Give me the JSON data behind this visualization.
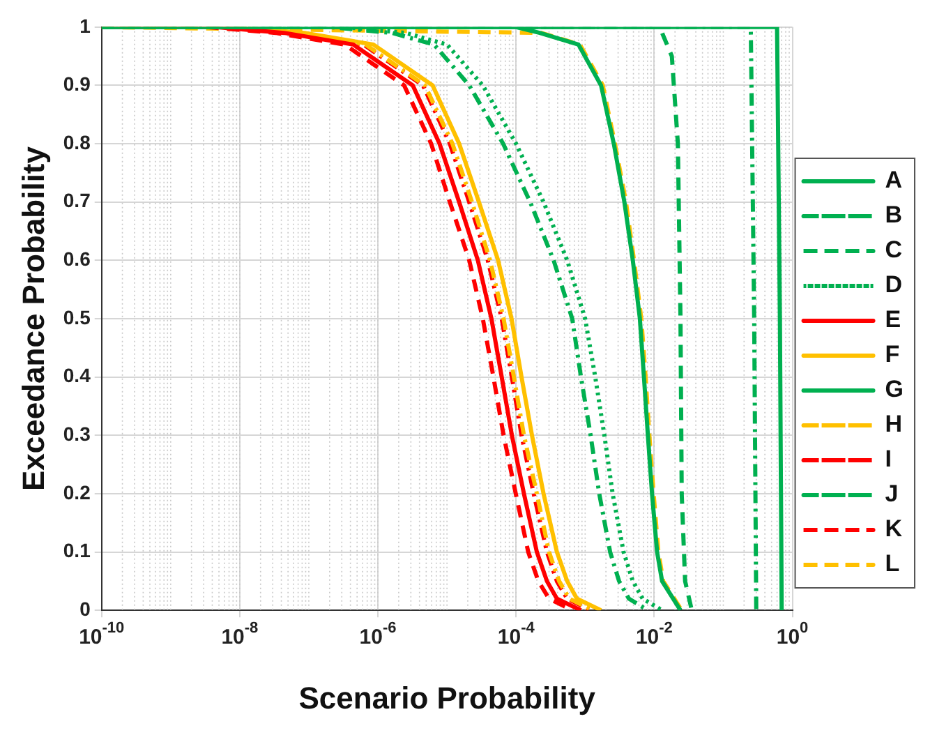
{
  "chart_data": {
    "type": "line",
    "xlabel": "Scenario Probability",
    "ylabel": "Exceedance Probability",
    "log": "x",
    "grid": true,
    "legend": "right",
    "marker": "none",
    "xlim": [
      1e-10,
      1
    ],
    "xticks": [
      {
        "value": 1e-10,
        "label": "10$^{-10}$"
      },
      {
        "value": 1e-08,
        "label": "10$^{-8}$"
      },
      {
        "value": 1e-06,
        "label": "10$^{-6}$"
      },
      {
        "value": 0.0001,
        "label": "10$^{-4}$"
      },
      {
        "value": 0.01,
        "label": "10$^{-2}$"
      },
      {
        "value": 1,
        "label": "10$^{0}$"
      }
    ],
    "ylim": [
      0,
      1
    ],
    "yticks": [
      0,
      0.1,
      0.2,
      0.3,
      0.4,
      0.5,
      0.6,
      0.7,
      0.8,
      0.9,
      1
    ],
    "series": [
      {
        "name": "A",
        "color": "#00b050",
        "line_style": "solid",
        "x": [
          1e-10,
          0.6,
          0.66,
          0.7
        ],
        "values": [
          1,
          1,
          0.5,
          0
        ]
      },
      {
        "name": "B",
        "color": "#00b050",
        "line_style": "dashdot",
        "x": [
          1e-10,
          0.25,
          0.28,
          0.3
        ],
        "values": [
          1,
          1,
          0.5,
          0
        ]
      },
      {
        "name": "C",
        "color": "#00b050",
        "line_style": "dashed",
        "x": [
          1e-10,
          0.012,
          0.018,
          0.022,
          0.024,
          0.025,
          0.028,
          0.035
        ],
        "values": [
          1,
          1,
          0.95,
          0.8,
          0.5,
          0.2,
          0.05,
          0
        ]
      },
      {
        "name": "D",
        "color": "#00b050",
        "line_style": "dotted",
        "x": [
          1e-10,
          3.2e-07,
          2.5e-06,
          1e-05,
          3.3e-05,
          0.0001,
          0.00025,
          0.00055,
          0.001,
          0.0014,
          0.0019,
          0.0025,
          0.0036,
          0.0049,
          0.0068,
          0.013
        ],
        "values": [
          1,
          1,
          0.99,
          0.97,
          0.9,
          0.8,
          0.7,
          0.6,
          0.5,
          0.4,
          0.3,
          0.2,
          0.1,
          0.05,
          0.02,
          0
        ]
      },
      {
        "name": "E",
        "color": "#ff0000",
        "line_style": "solid",
        "x": [
          1e-10,
          4.4e-09,
          4.4e-08,
          4.4e-07,
          3.2e-06,
          7.8e-06,
          1.5e-05,
          2.8e-05,
          4.4e-05,
          6.2e-05,
          8.7e-05,
          0.00013,
          0.0002,
          0.00028,
          0.00039,
          0.00087
        ],
        "values": [
          1,
          1,
          0.99,
          0.97,
          0.9,
          0.8,
          0.7,
          0.6,
          0.5,
          0.4,
          0.3,
          0.2,
          0.1,
          0.05,
          0.02,
          0
        ]
      },
      {
        "name": "F",
        "color": "#ffc000",
        "line_style": "solid",
        "x": [
          1e-10,
          8.6e-09,
          8.6e-08,
          8.6e-07,
          6.2e-06,
          1.5e-05,
          2.9e-05,
          5.5e-05,
          8.6e-05,
          0.00012,
          0.00017,
          0.00025,
          0.00039,
          0.00055,
          0.00076,
          0.0017
        ],
        "values": [
          1,
          1,
          0.99,
          0.97,
          0.9,
          0.8,
          0.7,
          0.6,
          0.5,
          0.4,
          0.3,
          0.2,
          0.1,
          0.05,
          0.02,
          0
        ]
      },
      {
        "name": "G",
        "color": "#00b050",
        "line_style": "solid",
        "x": [
          1e-10,
          0.0001,
          0.00022,
          0.0008,
          0.0017,
          0.0026,
          0.0037,
          0.0049,
          0.0062,
          0.0071,
          0.0081,
          0.0093,
          0.011,
          0.013,
          0.024
        ],
        "values": [
          1,
          1,
          0.99,
          0.97,
          0.9,
          0.8,
          0.7,
          0.6,
          0.5,
          0.4,
          0.3,
          0.2,
          0.1,
          0.05,
          0
        ]
      },
      {
        "name": "H",
        "color": "#ffc000",
        "line_style": "dashdot",
        "x": [
          1e-10,
          6.6e-09,
          6.6e-08,
          6.6e-07,
          4.8e-06,
          1.2e-05,
          2.3e-05,
          4.2e-05,
          6.6e-05,
          9.3e-05,
          0.00013,
          0.0002,
          0.0003,
          0.00042,
          0.00059,
          0.0013
        ],
        "values": [
          1,
          1,
          0.99,
          0.97,
          0.9,
          0.8,
          0.7,
          0.6,
          0.5,
          0.4,
          0.3,
          0.2,
          0.1,
          0.05,
          0.02,
          0
        ]
      },
      {
        "name": "I",
        "color": "#ff0000",
        "line_style": "dashdot",
        "x": [
          1e-10,
          6.2e-09,
          6.2e-08,
          6.2e-07,
          4.5e-06,
          1.1e-05,
          2.1e-05,
          3.9e-05,
          6.2e-05,
          8.7e-05,
          0.00012,
          0.00018,
          0.00028,
          0.00039,
          0.00055,
          0.0012
        ],
        "values": [
          1,
          1,
          0.99,
          0.97,
          0.9,
          0.8,
          0.7,
          0.6,
          0.5,
          0.4,
          0.3,
          0.2,
          0.1,
          0.05,
          0.02,
          0
        ]
      },
      {
        "name": "J",
        "color": "#00b050",
        "line_style": "dashdot",
        "x": [
          1e-10,
          2e-07,
          1.6e-06,
          6.5e-06,
          2.1e-05,
          6.5e-05,
          0.00016,
          0.00035,
          0.00065,
          0.00087,
          0.0012,
          0.0016,
          0.0023,
          0.0031,
          0.0043,
          0.0081
        ],
        "values": [
          1,
          1,
          0.99,
          0.97,
          0.9,
          0.8,
          0.7,
          0.6,
          0.5,
          0.4,
          0.3,
          0.2,
          0.1,
          0.05,
          0.02,
          0
        ]
      },
      {
        "name": "K",
        "color": "#ff0000",
        "line_style": "dashed",
        "x": [
          1e-10,
          3.3e-09,
          3.3e-08,
          3.3e-07,
          2.4e-06,
          5.9e-06,
          1.1e-05,
          2.1e-05,
          3.3e-05,
          4.7e-05,
          6.6e-05,
          9.9e-05,
          0.00015,
          0.00021,
          0.0003,
          0.00066
        ],
        "values": [
          1,
          1,
          0.99,
          0.97,
          0.9,
          0.8,
          0.7,
          0.6,
          0.5,
          0.4,
          0.3,
          0.2,
          0.1,
          0.05,
          0.02,
          0
        ]
      },
      {
        "name": "L",
        "color": "#ffc000",
        "line_style": "dashed",
        "x": [
          1e-10,
          0.00023,
          0.00084,
          0.0018,
          0.0027,
          0.0039,
          0.0051,
          0.0065,
          0.0075,
          0.0085,
          0.0098,
          0.0115,
          0.0135,
          0.025
        ],
        "values": [
          1,
          0.99,
          0.97,
          0.9,
          0.8,
          0.7,
          0.6,
          0.5,
          0.4,
          0.3,
          0.2,
          0.1,
          0.05,
          0
        ]
      }
    ]
  }
}
